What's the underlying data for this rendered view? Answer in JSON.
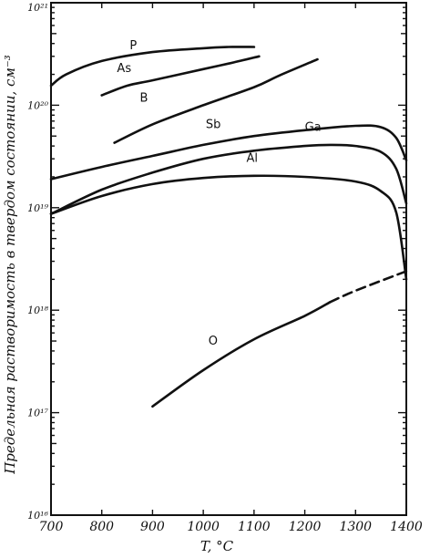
{
  "chart_data": {
    "type": "line",
    "title": "",
    "xlabel": "T, °C",
    "ylabel": "Предельная растворимость в твердом состоянии, см⁻³",
    "xlim": [
      700,
      1400
    ],
    "ylim_log10": [
      16,
      21
    ],
    "y_scale": "log",
    "x_ticks": [
      700,
      800,
      900,
      1000,
      1100,
      1200,
      1300,
      1400
    ],
    "y_ticks": [
      {
        "exp": 16,
        "label": "10¹⁶"
      },
      {
        "exp": 17,
        "label": "10¹⁷"
      },
      {
        "exp": 18,
        "label": "10¹⁸"
      },
      {
        "exp": 19,
        "label": "10¹⁹"
      },
      {
        "exp": 20,
        "label": "10²⁰"
      },
      {
        "exp": 21,
        "label": "10²¹"
      }
    ],
    "grid": false,
    "series": [
      {
        "name": "P",
        "x": [
          700,
          730,
          800,
          900,
          1000,
          1050,
          1100
        ],
        "y": [
          1.55e+20,
          2e+20,
          2.7e+20,
          3.3e+20,
          3.6e+20,
          3.7e+20,
          3.7e+20
        ]
      },
      {
        "name": "As",
        "x": [
          800,
          850,
          900,
          1000,
          1050,
          1110
        ],
        "y": [
          1.25e+20,
          1.55e+20,
          1.75e+20,
          2.25e+20,
          2.55e+20,
          3e+20
        ]
      },
      {
        "name": "B",
        "x": [
          825,
          900,
          1000,
          1100,
          1150,
          1225
        ],
        "y": [
          4.3e+19,
          6.5e+19,
          1e+20,
          1.5e+20,
          1.95e+20,
          2.8e+20
        ]
      },
      {
        "name": "Sb",
        "x": [
          700,
          800,
          900,
          1000,
          1100,
          1200,
          1300,
          1350,
          1380,
          1400
        ],
        "y": [
          1.9e+19,
          2.5e+19,
          3.2e+19,
          4.1e+19,
          5e+19,
          5.7e+19,
          6.3e+19,
          6.1e+19,
          4.8e+19,
          2.9e+19
        ]
      },
      {
        "name": "Ga",
        "x": [
          700,
          800,
          900,
          1000,
          1100,
          1200,
          1250,
          1300,
          1350,
          1380,
          1400
        ],
        "y": [
          8.7e+18,
          1.5e+19,
          2.2e+19,
          3e+19,
          3.6e+19,
          4e+19,
          4.1e+19,
          4e+19,
          3.5e+19,
          2.4e+19,
          1.1e+19
        ]
      },
      {
        "name": "Al",
        "x": [
          700,
          800,
          900,
          1000,
          1100,
          1200,
          1300,
          1350,
          1380,
          1400
        ],
        "y": [
          8.7e+18,
          1.3e+19,
          1.7e+19,
          1.95e+19,
          2.05e+19,
          2e+19,
          1.8e+19,
          1.45e+19,
          9e+18,
          2e+18
        ]
      },
      {
        "name": "O",
        "x": [
          900,
          1000,
          1100,
          1200,
          1250
        ],
        "y": [
          1.15e+17,
          2.6e+17,
          5.2e+17,
          8.8e+17,
          1.2e+18
        ],
        "x_dashed": [
          1250,
          1300,
          1400
        ],
        "y_dashed": [
          1.2e+18,
          1.55e+18,
          2.4e+18
        ]
      }
    ]
  }
}
